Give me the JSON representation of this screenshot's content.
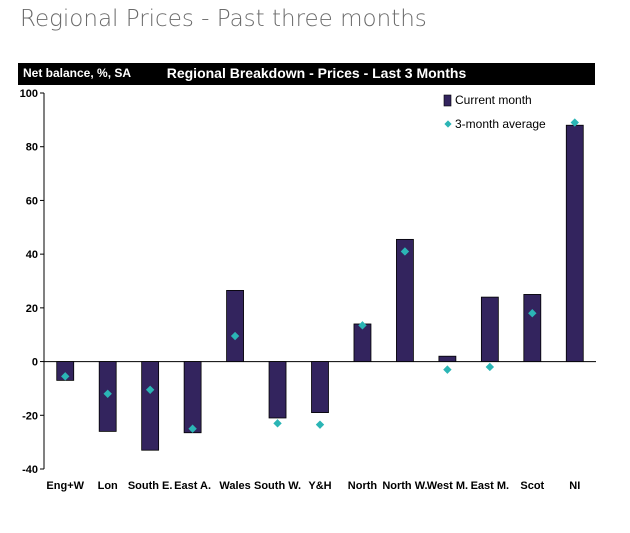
{
  "page": {
    "heading": "Regional Prices - Past three months"
  },
  "chart_data": {
    "type": "bar",
    "title": "Regional Breakdown - Prices - Last 3 Months",
    "ylabel": "Net balance, %, SA",
    "ylim": [
      -40,
      100
    ],
    "yticks": [
      -40,
      -20,
      0,
      20,
      40,
      60,
      80,
      100
    ],
    "categories": [
      "Eng+W",
      "Lon",
      "South E.",
      "East A.",
      "Wales",
      "South W.",
      "Y&H",
      "North",
      "North W.",
      "West M.",
      "East M.",
      "Scot",
      "NI"
    ],
    "series": [
      {
        "name": "Current month",
        "kind": "bar",
        "color": "#33245e",
        "values": [
          -7,
          -26,
          -33,
          -26.5,
          26.5,
          -21,
          -19,
          14,
          45.5,
          2,
          24,
          25,
          88
        ]
      },
      {
        "name": "3-month average",
        "kind": "marker",
        "color": "#2bb5b5",
        "values": [
          -5.5,
          -12,
          -10.5,
          -25,
          9.5,
          -23,
          -23.5,
          13.5,
          41,
          -3,
          -2,
          18,
          89
        ]
      }
    ],
    "legend_position": "top-right"
  }
}
